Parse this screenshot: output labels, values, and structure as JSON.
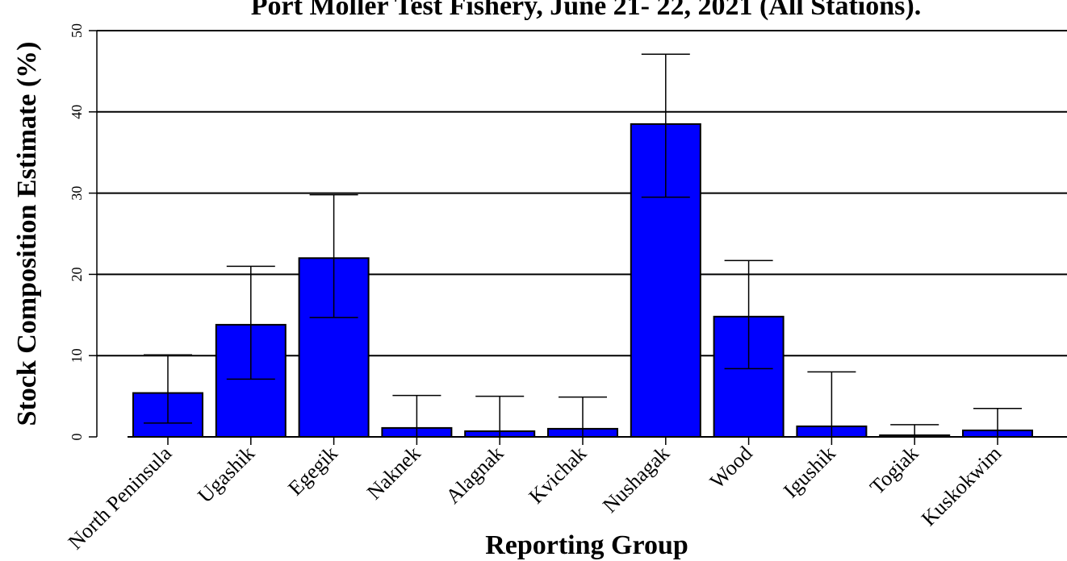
{
  "chart_data": {
    "type": "bar",
    "title": "Port Moller Test Fishery, June 21- 22, 2021 (All Stations).",
    "xlabel": "Reporting Group",
    "ylabel": "Stock Composition Estimate (%)",
    "categories": [
      "North Peninsula",
      "Ugashik",
      "Egegik",
      "Naknek",
      "Alagnak",
      "Kvichak",
      "Nushagak",
      "Wood",
      "Igushik",
      "Togiak",
      "Kuskokwim"
    ],
    "values": [
      5.4,
      13.8,
      22.0,
      1.1,
      0.7,
      1.0,
      38.5,
      14.8,
      1.3,
      0.2,
      0.8
    ],
    "error_lower": [
      1.7,
      7.1,
      14.7,
      0.0,
      0.0,
      0.0,
      29.5,
      8.4,
      0.0,
      0.0,
      0.0
    ],
    "error_upper": [
      10.1,
      21.0,
      29.8,
      5.1,
      5.0,
      4.9,
      47.1,
      21.7,
      8.0,
      1.5,
      3.5
    ],
    "ylim": [
      0,
      50
    ],
    "yticks": [
      0,
      10,
      20,
      30,
      40,
      50
    ],
    "grid": true,
    "colors": {
      "bar": "#0000ff",
      "outline": "#000000"
    }
  }
}
